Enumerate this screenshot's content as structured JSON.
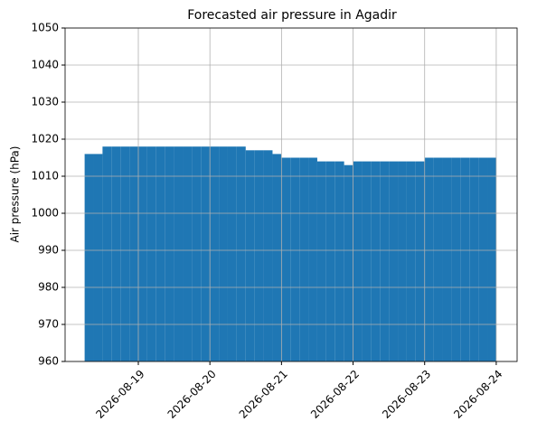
{
  "chart_data": {
    "type": "bar",
    "title": "Forecasted air pressure in Agadir",
    "ylabel": "Air pressure (hPa)",
    "color": "#1f77b4",
    "grid": true,
    "x": [
      "2026-08-18T06:00",
      "2026-08-18T09:00",
      "2026-08-18T12:00",
      "2026-08-18T15:00",
      "2026-08-18T18:00",
      "2026-08-18T21:00",
      "2026-08-19T00:00",
      "2026-08-19T03:00",
      "2026-08-19T06:00",
      "2026-08-19T09:00",
      "2026-08-19T12:00",
      "2026-08-19T15:00",
      "2026-08-19T18:00",
      "2026-08-19T21:00",
      "2026-08-20T00:00",
      "2026-08-20T03:00",
      "2026-08-20T06:00",
      "2026-08-20T09:00",
      "2026-08-20T12:00",
      "2026-08-20T15:00",
      "2026-08-20T18:00",
      "2026-08-20T21:00",
      "2026-08-21T00:00",
      "2026-08-21T03:00",
      "2026-08-21T06:00",
      "2026-08-21T09:00",
      "2026-08-21T12:00",
      "2026-08-21T15:00",
      "2026-08-21T18:00",
      "2026-08-21T21:00",
      "2026-08-22T00:00",
      "2026-08-22T03:00",
      "2026-08-22T06:00",
      "2026-08-22T09:00",
      "2026-08-22T12:00",
      "2026-08-22T15:00",
      "2026-08-22T18:00",
      "2026-08-22T21:00",
      "2026-08-23T00:00",
      "2026-08-23T03:00",
      "2026-08-23T06:00",
      "2026-08-23T09:00",
      "2026-08-23T12:00",
      "2026-08-23T15:00",
      "2026-08-23T18:00",
      "2026-08-23T21:00"
    ],
    "values": [
      1016,
      1016,
      1018,
      1018,
      1018,
      1018,
      1018,
      1018,
      1018,
      1018,
      1018,
      1018,
      1018,
      1018,
      1018,
      1018,
      1018,
      1018,
      1017,
      1017,
      1017,
      1016,
      1015,
      1015,
      1015,
      1015,
      1014,
      1014,
      1014,
      1013,
      1014,
      1014,
      1014,
      1014,
      1014,
      1014,
      1014,
      1014,
      1015,
      1015,
      1015,
      1015,
      1015,
      1015,
      1015,
      1015
    ],
    "xlim": [
      "2026-08-17T23:27",
      "2026-08-24T07:00"
    ],
    "xticks": [
      "2026-08-19",
      "2026-08-20",
      "2026-08-21",
      "2026-08-22",
      "2026-08-23",
      "2026-08-24"
    ],
    "ylim": [
      960,
      1050
    ],
    "yticks": [
      960,
      970,
      980,
      990,
      1000,
      1010,
      1020,
      1030,
      1040,
      1050
    ]
  }
}
